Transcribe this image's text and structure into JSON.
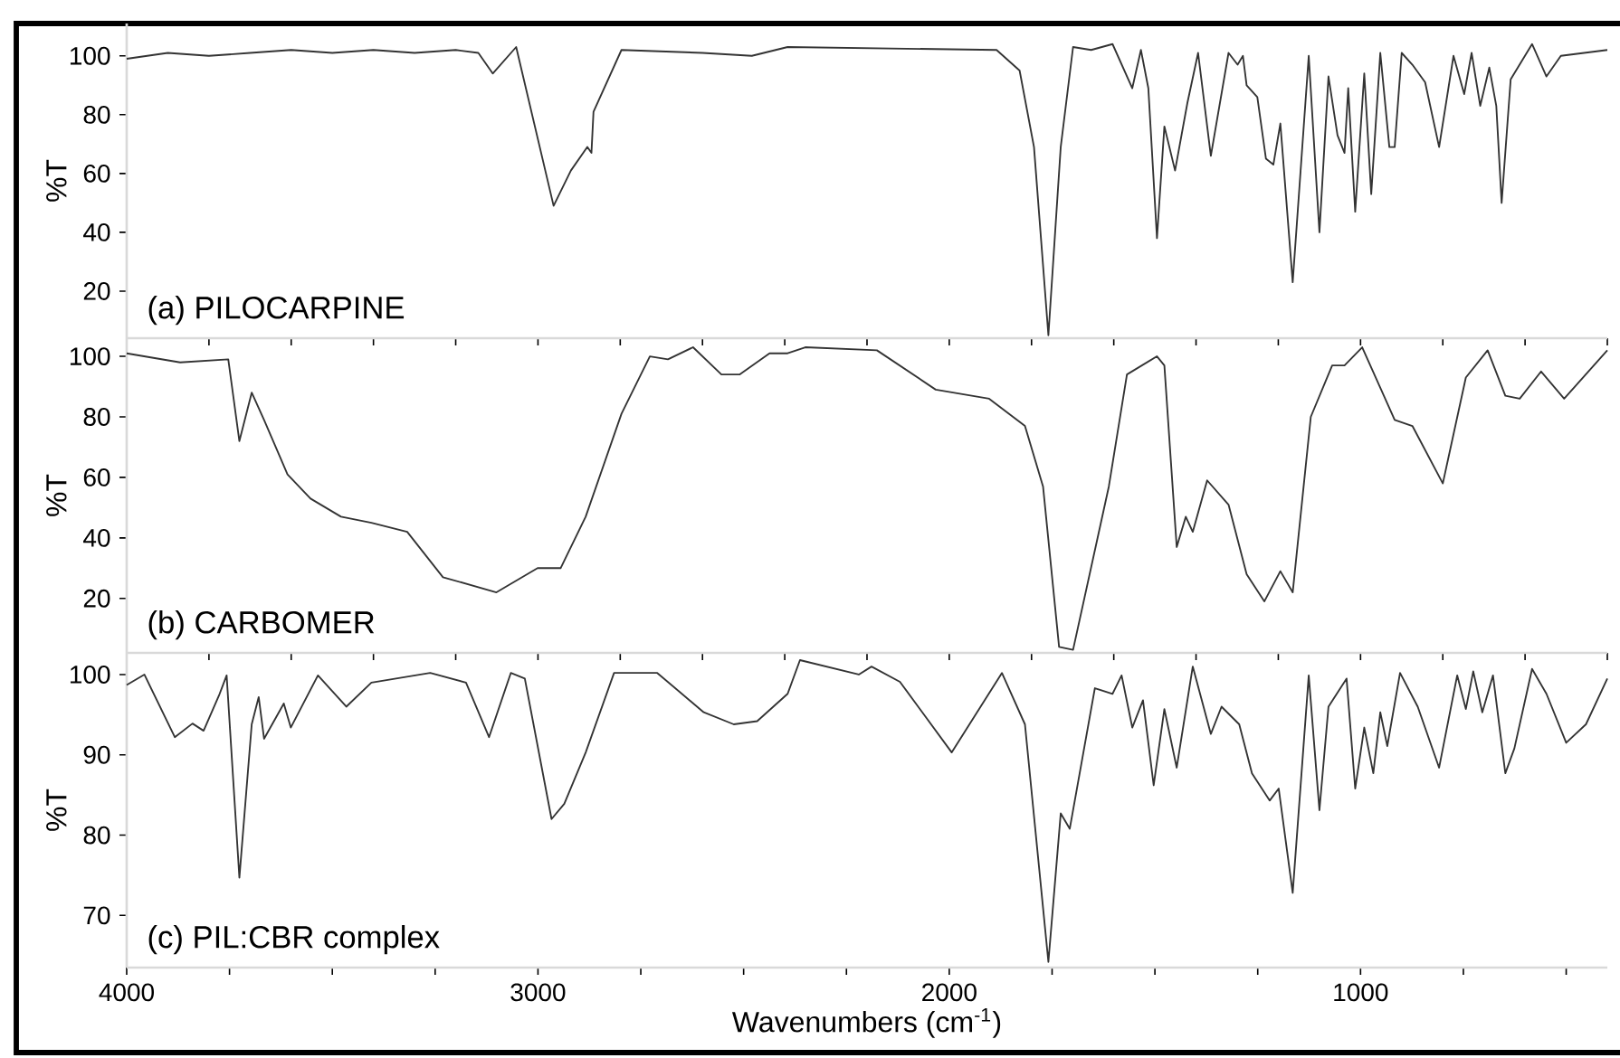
{
  "chart_data": [
    {
      "type": "line",
      "ylabel": "%T",
      "annotations": [
        "(a) PILOCARPINE"
      ],
      "xlim": [
        4000,
        400
      ],
      "ylim": [
        4,
        111
      ],
      "yticks": [
        20,
        40,
        60,
        80,
        100
      ],
      "tick_labels": "y",
      "series": [
        {
          "color": "#333333",
          "x": [
            4000,
            3900,
            3800,
            3700,
            3600,
            3500,
            3400,
            3300,
            3200,
            3145,
            3110,
            3053,
            2962,
            2920,
            2880,
            2870,
            2865,
            2797,
            2600,
            2480,
            2393,
            1885,
            1829,
            1794,
            1759,
            1729,
            1699,
            1655,
            1603,
            1555,
            1534,
            1516,
            1495,
            1477,
            1451,
            1421,
            1395,
            1364,
            1321,
            1299,
            1286,
            1277,
            1251,
            1230,
            1212,
            1195,
            1165,
            1126,
            1100,
            1078,
            1056,
            1039,
            1030,
            1013,
            991,
            974,
            952,
            930,
            917,
            900,
            874,
            843,
            809,
            774,
            748,
            730,
            709,
            687,
            670,
            657,
            635,
            583,
            548,
            513,
            400
          ],
          "values": [
            99,
            101,
            100,
            101,
            102,
            101,
            102,
            101,
            102,
            101,
            94,
            103,
            49,
            61,
            69,
            67,
            81,
            102,
            101,
            100,
            103,
            102,
            95,
            69,
            5,
            69,
            103,
            102,
            104,
            89,
            102,
            89,
            38,
            76,
            61,
            84,
            101,
            66,
            101,
            97,
            100,
            90,
            86,
            65,
            63,
            77,
            23,
            100,
            40,
            93,
            73,
            67,
            89,
            47,
            94,
            53,
            101,
            69,
            69,
            101,
            97,
            91,
            69,
            100,
            87,
            101,
            83,
            96,
            83,
            50,
            92,
            104,
            93,
            100,
            102
          ]
        }
      ]
    },
    {
      "type": "line",
      "ylabel": "%T",
      "annotations": [
        "(b) CARBOMER"
      ],
      "xlim": [
        4000,
        400
      ],
      "ylim": [
        2,
        106
      ],
      "yticks": [
        20,
        40,
        60,
        80,
        100
      ],
      "tick_labels": "y",
      "series": [
        {
          "color": "#333333",
          "x": [
            4000,
            3870,
            3753,
            3726,
            3696,
            3666,
            3609,
            3553,
            3479,
            3405,
            3318,
            3231,
            3101,
            3001,
            2945,
            2884,
            2797,
            2728,
            2684,
            2623,
            2554,
            2510,
            2437,
            2393,
            2350,
            2176,
            2033,
            1903,
            1816,
            1772,
            1733,
            1699,
            1612,
            1568,
            1495,
            1477,
            1447,
            1425,
            1408,
            1373,
            1321,
            1277,
            1234,
            1195,
            1165,
            1121,
            1069,
            1039,
            996,
            917,
            874,
            800,
            744,
            691,
            648,
            613,
            561,
            505,
            400
          ],
          "values": [
            101,
            98,
            99,
            72,
            88,
            79,
            61,
            53,
            47,
            45,
            42,
            27,
            22,
            30,
            30,
            47,
            81,
            100,
            99,
            103,
            94,
            94,
            101,
            101,
            103,
            102,
            89,
            86,
            77,
            57,
            4,
            3,
            57,
            94,
            100,
            97,
            37,
            47,
            42,
            59,
            51,
            28,
            19,
            29,
            22,
            80,
            97,
            97,
            103,
            79,
            77,
            58,
            93,
            102,
            87,
            86,
            95,
            86,
            102
          ]
        }
      ]
    },
    {
      "type": "line",
      "ylabel": "%T",
      "xlabel": "Wavenumbers (cm$^{-1}$)",
      "annotations": [
        "(c) PIL:CBR complex"
      ],
      "xlim": [
        4000,
        400
      ],
      "ylim": [
        63.5,
        102.7
      ],
      "yticks": [
        70,
        80,
        90,
        100
      ],
      "xticks": [
        4000,
        {
          "value": 3750,
          "label": null
        },
        {
          "value": 3500,
          "label": null
        },
        {
          "value": 3250,
          "label": null
        },
        3000,
        {
          "value": 2750,
          "label": null
        },
        {
          "value": 2500,
          "label": null
        },
        {
          "value": 2250,
          "label": null
        },
        2000,
        {
          "value": 1750,
          "label": null
        },
        {
          "value": 1500,
          "label": null
        },
        {
          "value": 1250,
          "label": null
        },
        1000,
        {
          "value": 750,
          "label": null
        },
        {
          "value": 500,
          "label": null
        }
      ],
      "series": [
        {
          "color": "#333333",
          "x": [
            4000,
            3957,
            3883,
            3840,
            3813,
            3774,
            3757,
            3726,
            3696,
            3679,
            3666,
            3618,
            3601,
            3535,
            3466,
            3405,
            3262,
            3175,
            3119,
            3066,
            3032,
            2967,
            2936,
            2884,
            2815,
            2710,
            2597,
            2524,
            2467,
            2393,
            2363,
            2220,
            2189,
            2120,
            1994,
            1872,
            1816,
            1759,
            1729,
            1707,
            1646,
            1603,
            1581,
            1555,
            1529,
            1503,
            1477,
            1447,
            1408,
            1364,
            1338,
            1295,
            1264,
            1221,
            1199,
            1165,
            1126,
            1100,
            1078,
            1034,
            1013,
            991,
            969,
            952,
            935,
            904,
            861,
            809,
            765,
            744,
            726,
            704,
            678,
            648,
            626,
            583,
            548,
            500,
            452,
            400
          ],
          "values": [
            98.7,
            100,
            92.2,
            93.9,
            93,
            97.6,
            99.9,
            74.7,
            93.8,
            97.2,
            92,
            96.4,
            93.4,
            99.9,
            96,
            99,
            100.2,
            99,
            92.2,
            100.2,
            99.5,
            82,
            83.9,
            90.3,
            100.2,
            100.2,
            95.3,
            93.8,
            94.2,
            97.6,
            101.8,
            100,
            101,
            99.1,
            90.3,
            100.2,
            93.8,
            64.2,
            82.7,
            80.8,
            98.3,
            97.6,
            99.9,
            93.4,
            96.8,
            86.2,
            95.7,
            88.4,
            101,
            92.6,
            96,
            93.8,
            87.7,
            84.3,
            85.8,
            72.8,
            99.9,
            83.1,
            96,
            99.5,
            85.8,
            93.4,
            87.7,
            95.3,
            91.1,
            100.2,
            96,
            88.4,
            99.9,
            95.7,
            100.4,
            95.3,
            99.9,
            87.7,
            90.8,
            100.7,
            97.6,
            91.5,
            93.8,
            99.5
          ]
        }
      ]
    }
  ]
}
